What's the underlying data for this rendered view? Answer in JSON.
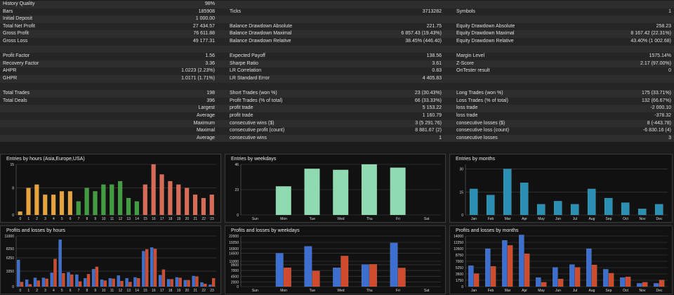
{
  "stats": {
    "history_quality": {
      "label": "History Quality",
      "value": "98%",
      "fraction": 0.98
    },
    "bars": {
      "label": "Bars",
      "value": "185908"
    },
    "ticks": {
      "label": "Ticks",
      "value": "3713282"
    },
    "symbols": {
      "label": "Symbols",
      "value": "1"
    },
    "initial_deposit": {
      "label": "Initial Deposit",
      "value": "1 000.00"
    },
    "total_net_profit": {
      "label": "Total Net Profit",
      "value": "27 434.57"
    },
    "gross_profit": {
      "label": "Gross Profit",
      "value": "76 611.88"
    },
    "gross_loss": {
      "label": "Gross Loss",
      "value": "49 177.31"
    },
    "balance_dd_abs": {
      "label": "Balance Drawdown Absolute",
      "value": "221.75"
    },
    "balance_dd_max": {
      "label": "Balance Drawdown Maximal",
      "value": "6 857.43 (19.43%)"
    },
    "balance_dd_rel": {
      "label": "Balance Drawdown Relative",
      "value": "38.45% (446.40)"
    },
    "equity_dd_abs": {
      "label": "Equity Drawdown Absolute",
      "value": "258.23"
    },
    "equity_dd_max": {
      "label": "Equity Drawdown Maximal",
      "value": "8 167.42 (22.31%)"
    },
    "equity_dd_rel": {
      "label": "Equity Drawdown Relative",
      "value": "43.40% (1 002.68)"
    },
    "profit_factor": {
      "label": "Profit Factor",
      "value": "1.56"
    },
    "recovery_factor": {
      "label": "Recovery Factor",
      "value": "3.36"
    },
    "ahpr": {
      "label": "AHPR",
      "value": "1.0223 (2.23%)"
    },
    "ghpr": {
      "label": "GHPR",
      "value": "1.0171 (1.71%)"
    },
    "expected_payoff": {
      "label": "Expected Payoff",
      "value": "138.56"
    },
    "sharpe_ratio": {
      "label": "Sharpe Ratio",
      "value": "3.61"
    },
    "lr_correlation": {
      "label": "LR Correlation",
      "value": "0.83"
    },
    "lr_std_error": {
      "label": "LR Standard Error",
      "value": "4 405.83"
    },
    "margin_level": {
      "label": "Margin Level",
      "value": "1575.14%"
    },
    "z_score": {
      "label": "Z-Score",
      "value": "2.17 (97.00%)"
    },
    "ontester": {
      "label": "OnTester result",
      "value": "0"
    },
    "total_trades": {
      "label": "Total Trades",
      "value": "198"
    },
    "total_deals": {
      "label": "Total Deals",
      "value": "396"
    },
    "short_trades": {
      "label": "Short Trades (won %)",
      "value": "23 (30.43%)"
    },
    "profit_trades": {
      "label": "Profit Trades (% of total)",
      "value": "66 (33.33%)"
    },
    "long_trades": {
      "label": "Long Trades (won %)",
      "value": "175 (33.71%)"
    },
    "loss_trades": {
      "label": "Loss Trades (% of total)",
      "value": "132 (66.67%)"
    },
    "largest": {
      "label": "Largest",
      "profit_label": "profit trade",
      "profit_value": "5 153.22",
      "loss_label": "loss trade",
      "loss_value": "-2 000.10"
    },
    "average": {
      "label": "Average",
      "profit_label": "profit trade",
      "profit_value": "1 160.79",
      "loss_label": "loss trade",
      "loss_value": "-378.32"
    },
    "maximum": {
      "label": "Maximum",
      "profit_label": "consecutive wins ($)",
      "profit_value": "3 (5 291.76)",
      "loss_label": "consecutive losses ($)",
      "loss_value": "8 (-443.78)"
    },
    "maximal": {
      "label": "Maximal",
      "profit_label": "consecutive profit (count)",
      "profit_value": "8 881.67 (2)",
      "loss_label": "consecutive loss (count)",
      "loss_value": "-6 830.16 (4)"
    },
    "average2": {
      "label": "Average",
      "profit_label": "consecutive wins",
      "profit_value": "1",
      "loss_label": "consecutive losses",
      "loss_value": "3"
    }
  },
  "colors": {
    "quality_bar": "#5be05b",
    "blue": "#3c6fcf",
    "red": "#d04a2e",
    "orange": "#e8a23a",
    "green": "#3f9d3f",
    "salmon": "#d96a55",
    "mint": "#8fdab0",
    "teal": "#2a8fb0"
  },
  "chart_data": [
    {
      "type": "bar",
      "title": "Entries by hours (Asia,Europe,USA)",
      "categories": [
        "0",
        "1",
        "2",
        "3",
        "4",
        "5",
        "6",
        "7",
        "8",
        "9",
        "10",
        "11",
        "12",
        "13",
        "14",
        "15",
        "16",
        "17",
        "18",
        "19",
        "20",
        "21",
        "22",
        "23"
      ],
      "series": [
        {
          "values": [
            1,
            8,
            9,
            6,
            6,
            7,
            7,
            4,
            8,
            7,
            9,
            9,
            10,
            5,
            4,
            9,
            15,
            12,
            10,
            9,
            8,
            6,
            5,
            6
          ]
        }
      ],
      "ylim": [
        0,
        15
      ],
      "yticks": [
        "0",
        "8",
        "15"
      ]
    },
    {
      "type": "bar",
      "title": "Entries by weekdays",
      "categories": [
        "Sun",
        "Mon",
        "Tue",
        "Wed",
        "Thu",
        "Fri",
        "Sat"
      ],
      "series": [
        {
          "values": [
            0,
            26,
            42,
            41,
            46,
            43,
            0
          ]
        }
      ],
      "ylim": [
        0,
        46
      ],
      "yticks": [
        "0",
        "23",
        "46"
      ]
    },
    {
      "type": "bar",
      "title": "Entries by months",
      "categories": [
        "Jan",
        "Feb",
        "Mar",
        "Apr",
        "May",
        "Jun",
        "Jul",
        "Aug",
        "Sep",
        "Oct",
        "Nov",
        "Dec"
      ],
      "series": [
        {
          "values": [
            17,
            13,
            30,
            21,
            7,
            9,
            7,
            17,
            11,
            8,
            4,
            7
          ]
        }
      ],
      "ylim": [
        0,
        33
      ],
      "yticks": [
        "0",
        "15",
        "30"
      ]
    },
    {
      "type": "bar",
      "title": "Profits and losses by hours",
      "categories": [
        "0",
        "1",
        "2",
        "3",
        "4",
        "5",
        "6",
        "7",
        "8",
        "9",
        "10",
        "11",
        "12",
        "13",
        "14",
        "15",
        "16",
        "17",
        "18",
        "19",
        "20",
        "21",
        "22",
        "23"
      ],
      "series": [
        {
          "name": "profit",
          "values": [
            5800,
            1500,
            1900,
            1900,
            3000,
            10200,
            3100,
            2600,
            1800,
            3800,
            1500,
            1800,
            2400,
            1800,
            2000,
            7700,
            8500,
            2500,
            1600,
            2000,
            1400,
            2300,
            900,
            400
          ]
        },
        {
          "name": "loss",
          "values": [
            1000,
            500,
            1300,
            1700,
            6000,
            2900,
            2600,
            1100,
            2700,
            4300,
            1300,
            1700,
            1200,
            1000,
            1800,
            8100,
            8200,
            3700,
            1600,
            1900,
            1400,
            2200,
            600,
            1800
          ]
        }
      ],
      "ylim": [
        0,
        11000
      ],
      "yticks": [
        "0",
        "3350",
        "6250",
        "8250",
        "11000"
      ]
    },
    {
      "type": "bar",
      "title": "Profits and losses by weekdays",
      "categories": [
        "Sun",
        "Mon",
        "Tue",
        "Wed",
        "Thu",
        "Fri",
        "Sat"
      ],
      "series": [
        {
          "name": "profit",
          "values": [
            0,
            14500,
            17500,
            8200,
            9600,
            19000,
            0
          ]
        },
        {
          "name": "loss",
          "values": [
            0,
            8200,
            6800,
            13300,
            9700,
            8100,
            0
          ]
        }
      ],
      "ylim": [
        0,
        22000
      ],
      "yticks": [
        "0",
        "2000",
        "4500",
        "7000",
        "9500",
        "11000",
        "14500",
        "16500",
        "19250",
        "22000"
      ]
    },
    {
      "type": "bar",
      "title": "Profits and losses by months",
      "categories": [
        "Jan",
        "Feb",
        "Mar",
        "Apr",
        "May",
        "Jun",
        "Jul",
        "Aug",
        "Sep",
        "Oct",
        "Nov",
        "Dec"
      ],
      "series": [
        {
          "name": "profit",
          "values": [
            5800,
            10500,
            12800,
            14300,
            2500,
            5300,
            6100,
            10500,
            4800,
            2500,
            900,
            900
          ]
        },
        {
          "name": "loss",
          "values": [
            3600,
            5600,
            11400,
            9100,
            1200,
            2100,
            5300,
            6000,
            3700,
            2700,
            1200,
            1800
          ]
        }
      ],
      "ylim": [
        0,
        14000
      ],
      "yticks": [
        "0",
        "1750",
        "3500",
        "5250",
        "7000",
        "8750",
        "10500",
        "12250",
        "14000"
      ]
    }
  ]
}
